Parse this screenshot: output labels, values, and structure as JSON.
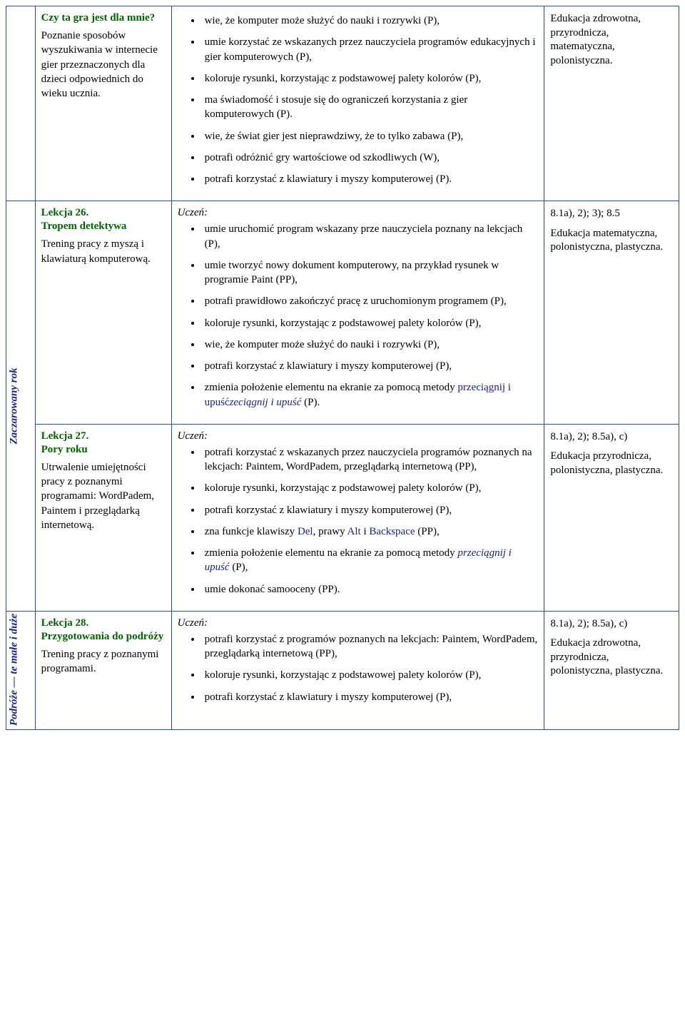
{
  "colors": {
    "border": "#2a4a9c",
    "green": "#006400",
    "term": "#1a237e",
    "text": "#000000",
    "bg": "#ffffff"
  },
  "rows": [
    {
      "section": "",
      "lesson": {
        "title": "Czy ta gra jest dla mnie?",
        "desc": "Poznanie sposobów wyszukiwania w internecie gier przeznaczonych dla dzieci odpowiednich do wieku ucznia."
      },
      "intro": "",
      "bullets": [
        "wie, że komputer może służyć do nauki i rozrywki (P),",
        "umie korzystać ze wskazanych przez nauczyciela programów edukacyjnych i gier komputerowych (P),",
        "koloruje rysunki, korzystając z podstawowej palety kolorów (P),",
        "ma świadomość i stosuje się do ograniczeń korzystania z gier komputerowych (P).",
        "wie, że świat gier jest nieprawdziwy, że to tylko zabawa (P),",
        "potrafi odróżnić gry wartościowe od szkodliwych (W),",
        "potrafi korzystać z klawiatury i myszy komputerowej (P)."
      ],
      "right": {
        "codes": "",
        "edu": "Edukacja zdrowotna, przyrodnicza, matematyczna, polonistyczna."
      }
    },
    {
      "section": "Zaczarowany rok",
      "section_rowspan": 2,
      "lesson": {
        "num": "Lekcja 26.",
        "title": "Tropem detektywa",
        "desc": "Trening pracy z myszą i klawiaturą komputerową."
      },
      "intro": "Uczeń:",
      "bullets": [
        "umie uruchomić program wskazany prze nauczyciela poznany na lekcjach (P),",
        "umie tworzyć nowy dokument komputerowy, na przykład rysunek w programie Paint (PP),",
        "potrafi prawidłowo zakończyć pracę z uruchomionym programem (P),",
        "koloruje rysunki, korzystając z podstawowej palety kolorów (P),",
        "wie, że komputer może służyć do nauki i rozrywki (P),",
        "potrafi korzystać z klawiatury i myszy komputerowej (P),"
      ],
      "last_bullet_pre": "zmienia położenie elementu na ekranie za pomocą metody ",
      "last_bullet_term": "przeciągnij i upuść",
      "last_bullet_post": " (P).",
      "right": {
        "codes": "8.1a), 2); 3); 8.5",
        "edu": "Edukacja matematyczna, polonistyczna, plastyczna."
      }
    },
    {
      "lesson": {
        "num": "Lekcja 27.",
        "title": "Pory roku",
        "desc": "Utrwalenie umiejętności pracy z poznanymi programami: WordPadem, Paintem i przeglądarką internetową."
      },
      "intro": "Uczeń:",
      "bullets_complex": {
        "b1": "potrafi korzystać z wskazanych przez nauczyciela programów poznanych na lekcjach: Paintem, WordPadem, przeglądarką internetową (PP),",
        "b2": "koloruje rysunki, korzystając z podstawowej palety kolorów (P),",
        "b3": "potrafi korzystać z klawiatury i myszy komputerowej (P),",
        "b4_pre": "zna funkcje klawiszy ",
        "b4_t1": "Del",
        "b4_mid1": ", prawy ",
        "b4_t2": "Alt",
        "b4_mid2": " i ",
        "b4_t3": "Backspace",
        "b4_post": " (PP),",
        "b5_pre": "zmienia położenie elementu na ekranie za pomocą metody ",
        "b5_term": "przeciągnij i upuść",
        "b5_post": " (P),",
        "b6": "umie dokonać samooceny (PP)."
      },
      "right": {
        "codes": "8.1a), 2); 8.5a), c)",
        "edu": "Edukacja przyrodnicza, polonistyczna, plastyczna."
      }
    },
    {
      "section": "Podróże — te małe i duże",
      "lesson": {
        "num": "Lekcja 28.",
        "title": "Przygotowania do podróży",
        "desc": "Trening pracy z poznanymi programami."
      },
      "intro": "Uczeń:",
      "bullets": [
        "potrafi korzystać z programów poznanych na lekcjach: Paintem, WordPadem, przeglądarką internetową (PP),",
        "koloruje rysunki, korzystając z podstawowej palety kolorów (P),",
        "potrafi korzystać z klawiatury i myszy komputerowej (P),"
      ],
      "right": {
        "codes": "8.1a), 2); 8.5a), c)",
        "edu": "Edukacja zdrowotna, przyrodnicza, polonistyczna, plastyczna."
      }
    }
  ]
}
